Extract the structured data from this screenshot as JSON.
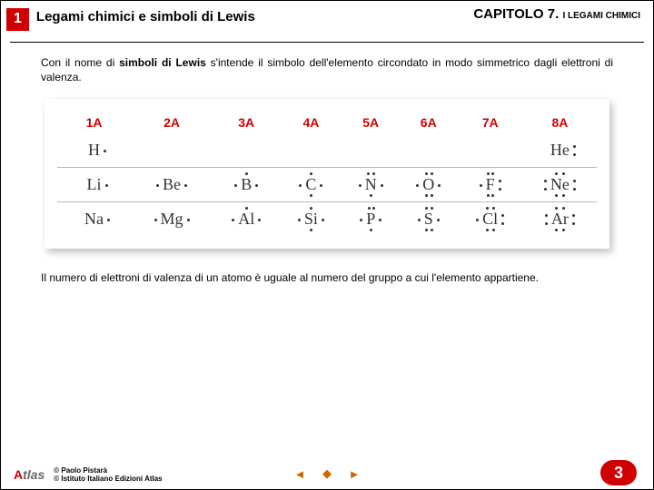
{
  "header": {
    "section_number": "1",
    "section_title": "Legami chimici e simboli di Lewis",
    "chapter_prefix": "CAPITOLO",
    "chapter_number": "7.",
    "chapter_label": "I LEGAMI CHIMICI"
  },
  "intro_html": "Con il nome di <b>simboli di Lewis</b> s'intende il simbolo dell'elemento circondato in modo simmetrico dagli elettroni di valenza.",
  "outro_text": "Il numero di elettroni di valenza di un atomo è uguale al numero del gruppo a cui l'elemento appartiene.",
  "table": {
    "group_headers": [
      "1A",
      "2A",
      "3A",
      "4A",
      "5A",
      "6A",
      "7A",
      "8A"
    ],
    "header_color": "#d10000",
    "border_color": "#bbbbbb",
    "element_font": "Times New Roman",
    "element_fontsize": 18,
    "header_fontsize": 14,
    "rows": [
      [
        {
          "sym": "H",
          "dots": [
            "r1"
          ]
        },
        null,
        null,
        null,
        null,
        null,
        null,
        {
          "sym": "He",
          "dots": [
            "r2",
            "r3"
          ]
        }
      ],
      [
        {
          "sym": "Li",
          "dots": [
            "r1"
          ]
        },
        {
          "sym": "Be",
          "dots": [
            "r1",
            "l1"
          ]
        },
        {
          "sym": "B",
          "dots": [
            "r1",
            "l1",
            "t1"
          ]
        },
        {
          "sym": "C",
          "dots": [
            "r1",
            "l1",
            "t1",
            "b1"
          ]
        },
        {
          "sym": "N",
          "dots": [
            "r1",
            "l1",
            "t2",
            "t3",
            "b1"
          ]
        },
        {
          "sym": "O",
          "dots": [
            "r1",
            "l1",
            "t2",
            "t3",
            "b2",
            "b3"
          ]
        },
        {
          "sym": "F",
          "dots": [
            "r2",
            "r3",
            "l1",
            "t2",
            "t3",
            "b2",
            "b3"
          ]
        },
        {
          "sym": "Ne",
          "dots": [
            "r2",
            "r3",
            "l2",
            "l3",
            "t2",
            "t3",
            "b2",
            "b3"
          ]
        }
      ],
      [
        {
          "sym": "Na",
          "dots": [
            "r1"
          ]
        },
        {
          "sym": "Mg",
          "dots": [
            "r1",
            "l1"
          ]
        },
        {
          "sym": "Al",
          "dots": [
            "r1",
            "l1",
            "t1"
          ]
        },
        {
          "sym": "Si",
          "dots": [
            "r1",
            "l1",
            "t1",
            "b1"
          ]
        },
        {
          "sym": "P",
          "dots": [
            "r1",
            "l1",
            "t2",
            "t3",
            "b1"
          ]
        },
        {
          "sym": "S",
          "dots": [
            "r1",
            "l1",
            "t2",
            "t3",
            "b2",
            "b3"
          ]
        },
        {
          "sym": "Cl",
          "dots": [
            "r2",
            "r3",
            "l1",
            "t2",
            "t3",
            "b2",
            "b3"
          ]
        },
        {
          "sym": "Ar",
          "dots": [
            "r2",
            "r3",
            "l2",
            "l3",
            "t2",
            "t3",
            "b2",
            "b3"
          ]
        }
      ]
    ]
  },
  "footer": {
    "logo_text": "Atlas",
    "copyright_line1": "© Paolo Pistarà",
    "copyright_line2": "© Istituto Italiano Edizioni Atlas",
    "page_number": "3",
    "pagenum_bg": "#d10000"
  },
  "nav": {
    "prev": "◄",
    "home": "◆",
    "next": "►"
  }
}
